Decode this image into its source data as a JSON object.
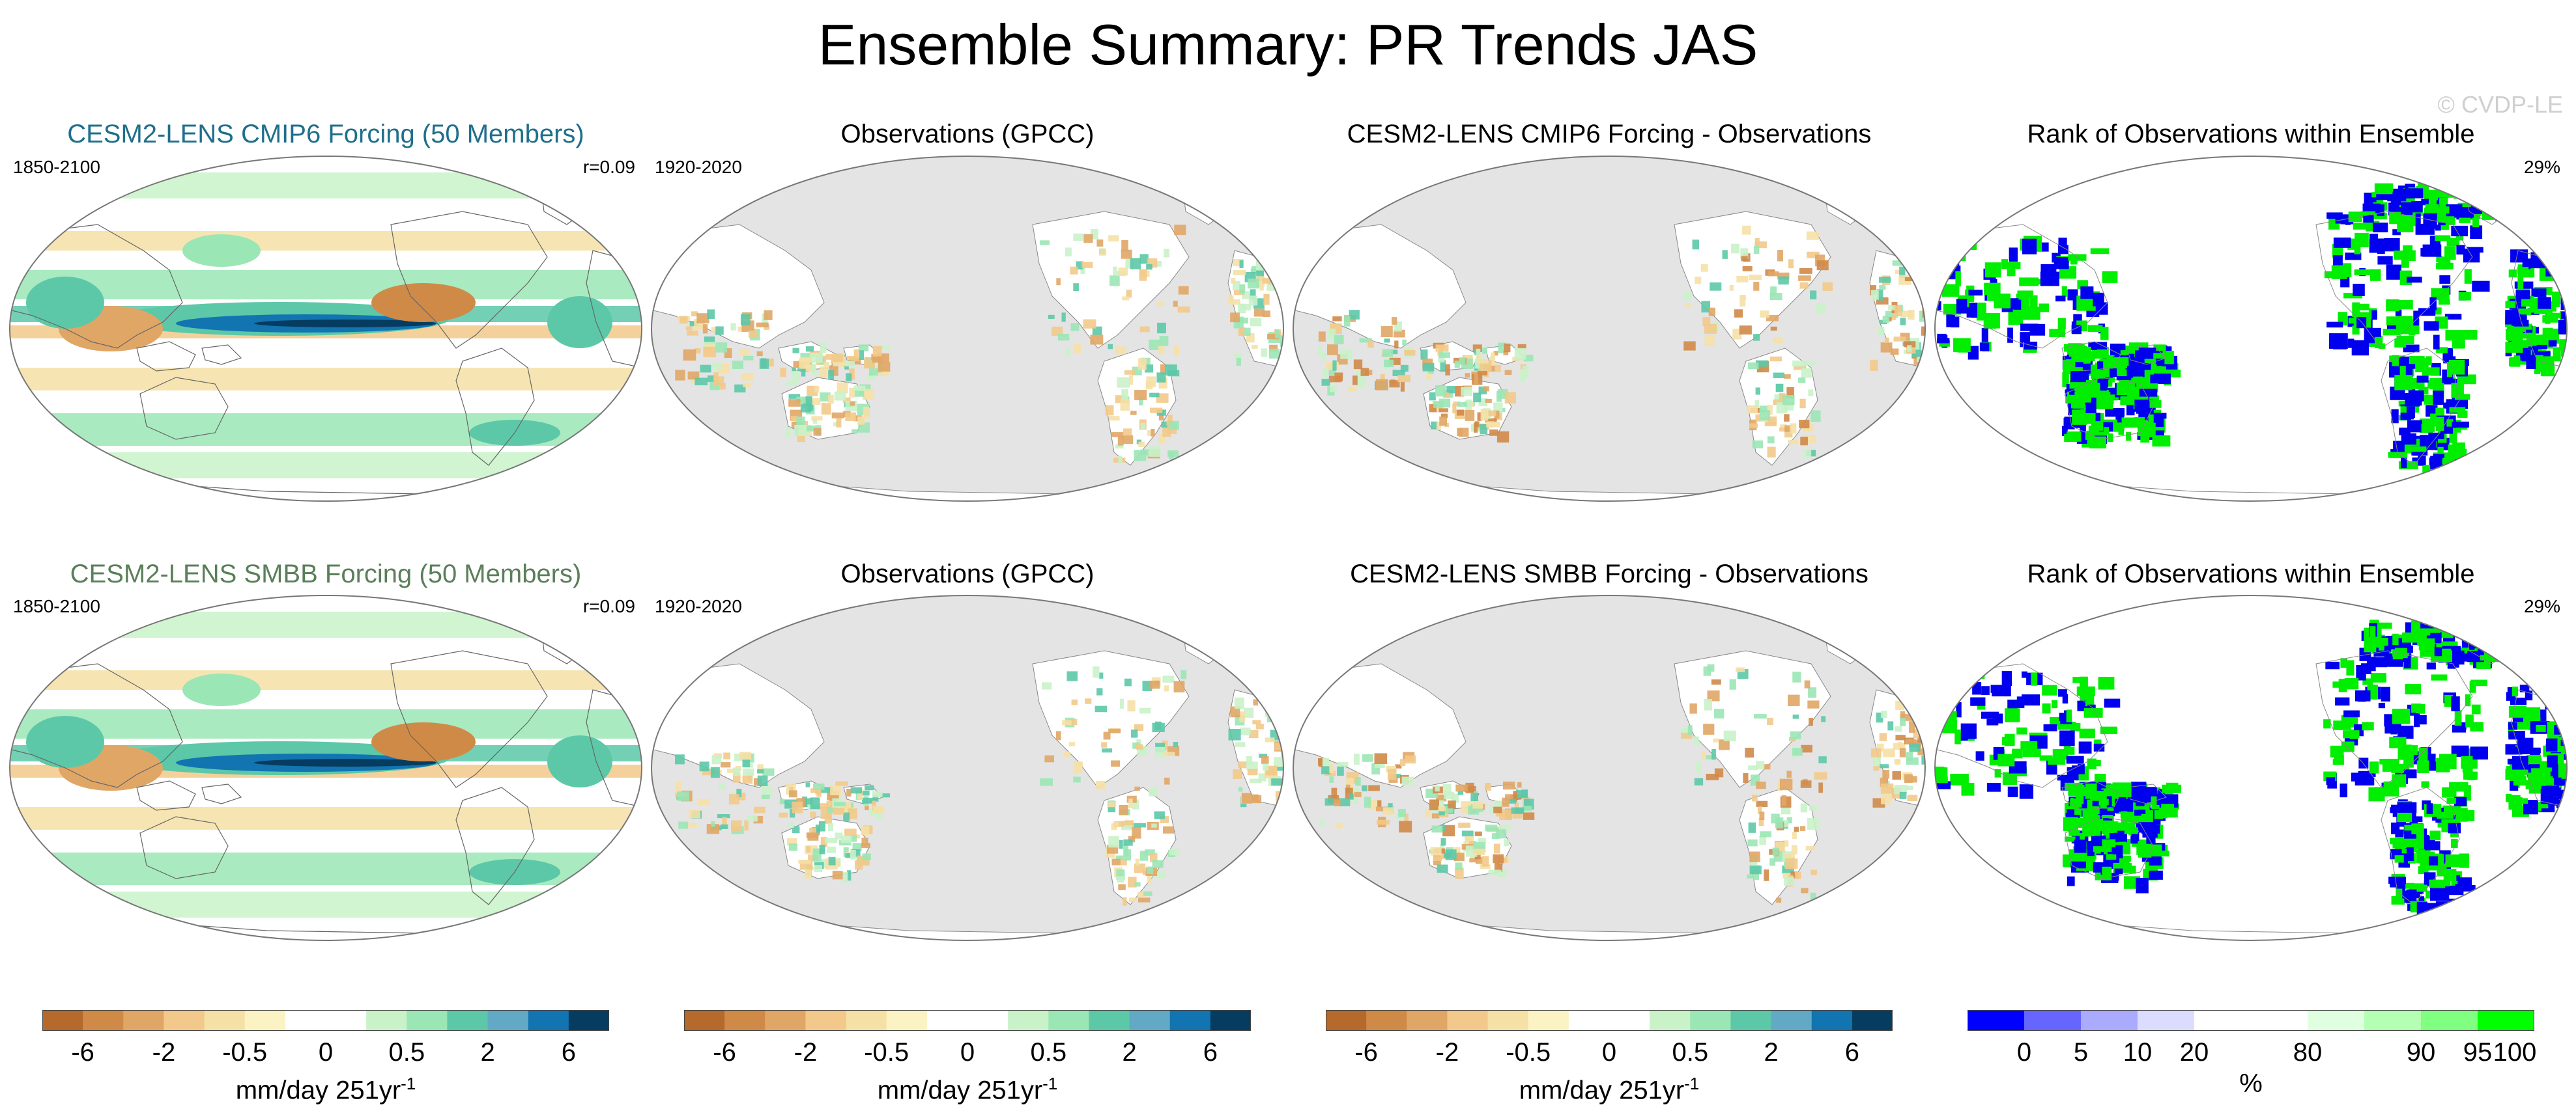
{
  "title": "Ensemble Summary: PR Trends JAS",
  "watermark": "© CVDP-LE",
  "colors": {
    "title_blue": "#1f6f8b",
    "title_green": "#5a7f5a",
    "land_gray": "#e4e4e4",
    "rank_blue": "#0000ee",
    "rank_green": "#00ee00"
  },
  "rows": [
    {
      "panels": [
        {
          "title": "CESM2-LENS CMIP6 Forcing (50 Members)",
          "left": "1850-2100",
          "right": "r=0.09",
          "type": "model",
          "title_color": "#1f6f8b"
        },
        {
          "title": "Observations (GPCC)",
          "left": "1920-2020",
          "right": "",
          "type": "obs"
        },
        {
          "title": "CESM2-LENS CMIP6 Forcing - Observations",
          "left": "",
          "right": "",
          "type": "diff"
        },
        {
          "title": "Rank of Observations within Ensemble",
          "left": "",
          "right": "29%",
          "type": "rank"
        }
      ]
    },
    {
      "panels": [
        {
          "title": "CESM2-LENS SMBB Forcing (50 Members)",
          "left": "1850-2100",
          "right": "r=0.09",
          "type": "model",
          "title_color": "#5a7f5a"
        },
        {
          "title": "Observations (GPCC)",
          "left": "1920-2020",
          "right": "",
          "type": "obs"
        },
        {
          "title": "CESM2-LENS SMBB Forcing - Observations",
          "left": "",
          "right": "",
          "type": "diff"
        },
        {
          "title": "Rank of Observations within Ensemble",
          "left": "",
          "right": "29%",
          "type": "rank"
        }
      ]
    }
  ],
  "colorbars": [
    {
      "ticks": [
        "-6",
        "-2",
        "-0.5",
        "0",
        "0.5",
        "2",
        "6"
      ],
      "unit": "mm/day 251yr",
      "unit_sup": "-1"
    },
    {
      "ticks": [
        "-6",
        "-2",
        "-0.5",
        "0",
        "0.5",
        "2",
        "6"
      ],
      "unit": "mm/day 251yr",
      "unit_sup": "-1"
    },
    {
      "ticks": [
        "-6",
        "-2",
        "-0.5",
        "0",
        "0.5",
        "2",
        "6"
      ],
      "unit": "mm/day 251yr",
      "unit_sup": "-1"
    },
    {
      "ticks": [
        "0",
        "5",
        "10",
        "20",
        "80",
        "90",
        "95",
        "100"
      ],
      "unit": "%",
      "unit_sup": ""
    }
  ],
  "precip_colors": [
    "#b5692c",
    "#d08a48",
    "#e0a666",
    "#f2c98a",
    "#f5e0a6",
    "#fbf3c4",
    "#ffffff",
    "#ffffff",
    "#c9f2c9",
    "#9ae6b5",
    "#5cc8a8",
    "#62a9c6",
    "#1274b0",
    "#063c60"
  ],
  "rank_colors": [
    "#0000ff",
    "#6666ff",
    "#aaaaff",
    "#dcdcff",
    "#ffffff",
    "#ffffff",
    "#e0ffe0",
    "#b4ffb4",
    "#80ff80",
    "#00ff00"
  ]
}
